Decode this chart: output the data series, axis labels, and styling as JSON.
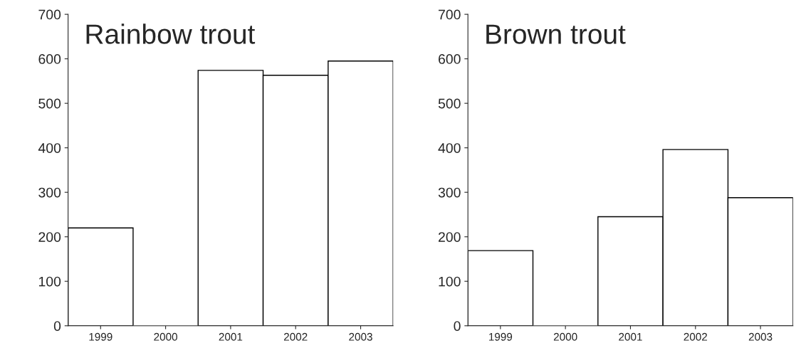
{
  "chart_data": [
    {
      "type": "bar",
      "title": "Rainbow trout",
      "categories": [
        "1999",
        "2000",
        "2001",
        "2002",
        "2003"
      ],
      "values": [
        220,
        0,
        574,
        563,
        595
      ],
      "color": "#ffffff",
      "ylim": [
        0,
        700
      ],
      "yticks": [
        0,
        100,
        200,
        300,
        400,
        500,
        600,
        700
      ],
      "grid": false
    },
    {
      "type": "bar",
      "title": "Brown trout",
      "categories": [
        "1999",
        "2000",
        "2001",
        "2002",
        "2003"
      ],
      "values": [
        169,
        0,
        245,
        396,
        288
      ],
      "color": "#ffffff",
      "ylim": [
        0,
        700
      ],
      "yticks": [
        0,
        100,
        200,
        300,
        400,
        500,
        600,
        700
      ],
      "grid": false
    }
  ]
}
